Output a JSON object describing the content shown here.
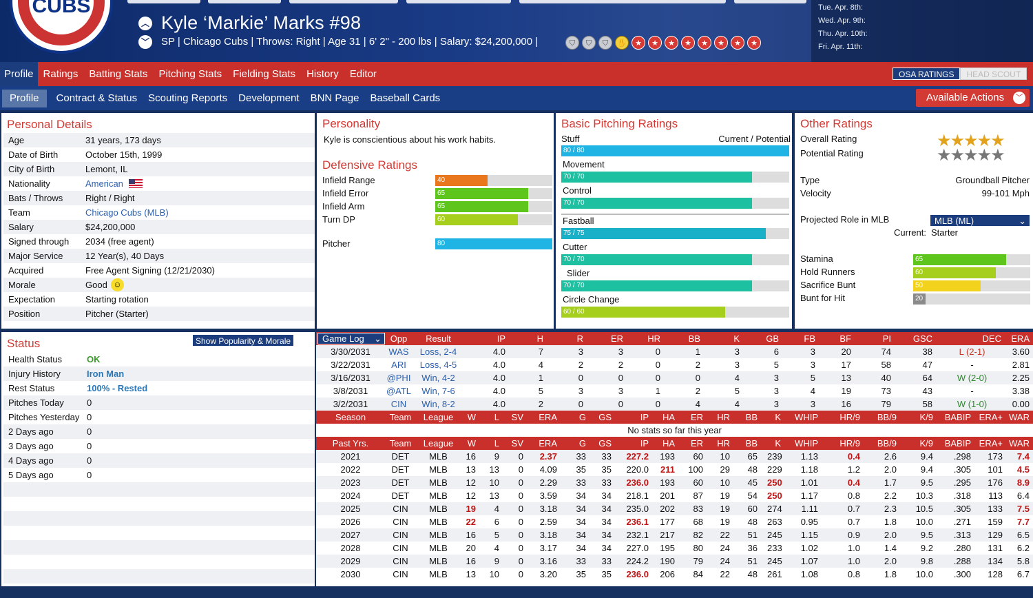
{
  "header": {
    "logo_text": "CUBS",
    "player_name": "Kyle ‘Markie’ Marks  #98",
    "player_info": "SP | Chicago Cubs  |  Throws: Right  |  Age 31  |  6' 2\" - 200 lbs  |  Salary: $24,200,000  |",
    "badges": [
      "gray",
      "gray",
      "gray",
      "gold",
      "red",
      "red",
      "red",
      "red",
      "red",
      "red",
      "red",
      "red"
    ],
    "dates": [
      "Tue. Apr. 8th:",
      "Wed. Apr. 9th:",
      "Thu. Apr. 10th:",
      "Fri. Apr. 11th:"
    ]
  },
  "nav1": {
    "tabs": [
      "Profile",
      "Ratings",
      "Batting Stats",
      "Pitching Stats",
      "Fielding Stats",
      "History",
      "Editor"
    ],
    "osa": "OSA RATINGS",
    "head_scout": "HEAD SCOUT"
  },
  "nav2": {
    "tabs": [
      "Profile",
      "Contract & Status",
      "Scouting Reports",
      "Development",
      "BNN Page",
      "Baseball Cards"
    ],
    "available_actions": "Available Actions"
  },
  "personal": {
    "title": "Personal Details",
    "rows": [
      {
        "k": "Age",
        "v": "31 years, 173 days"
      },
      {
        "k": "Date of Birth",
        "v": "October 15th, 1999"
      },
      {
        "k": "City of Birth",
        "v": "Lemont, IL"
      },
      {
        "k": "Nationality",
        "v": "American"
      },
      {
        "k": "Bats / Throws",
        "v": "Right / Right"
      },
      {
        "k": "Team",
        "v": "Chicago Cubs (MLB)"
      },
      {
        "k": "Salary",
        "v": "$24,200,000"
      },
      {
        "k": "Signed through",
        "v": "2034 (free agent)"
      },
      {
        "k": "Major Service",
        "v": "12 Year(s), 40 Days"
      },
      {
        "k": "Acquired",
        "v": "Free Agent Signing (12/21/2030)"
      },
      {
        "k": "Morale",
        "v": "Good"
      },
      {
        "k": "Expectation",
        "v": "Starting rotation"
      },
      {
        "k": "Position",
        "v": "Pitcher (Starter)"
      }
    ]
  },
  "status": {
    "title": "Status",
    "button": "Show Popularity & Morale",
    "rows": [
      {
        "k": "Health Status",
        "v": "OK"
      },
      {
        "k": "Injury History",
        "v": "Iron Man"
      },
      {
        "k": "Rest Status",
        "v": "100% - Rested"
      },
      {
        "k": "Pitches Today",
        "v": "0"
      },
      {
        "k": "Pitches Yesterday",
        "v": "0"
      },
      {
        "k": "2 Days ago",
        "v": "0"
      },
      {
        "k": "3 Days ago",
        "v": "0"
      },
      {
        "k": "4 Days ago",
        "v": "0"
      },
      {
        "k": "5 Days ago",
        "v": "0"
      }
    ]
  },
  "personality": {
    "title": "Personality",
    "text": "Kyle is conscientious about his work habits."
  },
  "defensive": {
    "title": "Defensive Ratings",
    "rows": [
      {
        "k": "Infield Range",
        "v": 40,
        "color": "#e8771d"
      },
      {
        "k": "Infield Error",
        "v": 65,
        "color": "#5dc51c"
      },
      {
        "k": "Infield Arm",
        "v": 65,
        "color": "#5dc51c"
      },
      {
        "k": "Turn DP",
        "v": 60,
        "color": "#a5cf1c"
      }
    ],
    "pitcher": {
      "k": "Pitcher",
      "v": 80,
      "color": "#1fb4e3"
    }
  },
  "basic": {
    "title": "Basic Pitching Ratings",
    "sub": "Current / Potential",
    "rows": [
      {
        "k": "Stuff",
        "cur": 80,
        "pot": 80,
        "label": "80 / 80",
        "color": "#1fb4e3"
      },
      {
        "k": "Movement",
        "cur": 70,
        "pot": 70,
        "label": "70 / 70",
        "color": "#1dc0a0"
      },
      {
        "k": "Control",
        "cur": 70,
        "pot": 70,
        "label": "70 / 70",
        "color": "#1dc0a0"
      },
      {
        "k": "Fastball",
        "cur": 75,
        "pot": 75,
        "label": "75 / 75",
        "color": "#1ab0c8"
      },
      {
        "k": "Cutter",
        "cur": 70,
        "pot": 70,
        "label": "70 / 70",
        "color": "#1dc0a0"
      },
      {
        "k": "Slider",
        "cur": 70,
        "pot": 70,
        "label": "70 / 70",
        "color": "#1dc0a0"
      },
      {
        "k": "Circle Change",
        "cur": 60,
        "pot": 60,
        "label": "60 / 60",
        "color": "#a5cf1c"
      }
    ]
  },
  "other": {
    "title": "Other Ratings",
    "overall_label": "Overall Rating",
    "overall_stars": 5,
    "potential_label": "Potential Rating",
    "potential_stars": 5,
    "type_label": "Type",
    "type_value": "Groundball Pitcher",
    "velocity_label": "Velocity",
    "velocity_value": "99-101 Mph",
    "role_label": "Projected Role in MLB",
    "role_select": "MLB (ML)",
    "current_label": "Current:",
    "current_value": "Starter",
    "bars": [
      {
        "k": "Stamina",
        "v": 65,
        "color": "#5dc51c"
      },
      {
        "k": "Hold Runners",
        "v": 60,
        "color": "#a5cf1c"
      },
      {
        "k": "Sacrifice Bunt",
        "v": 50,
        "color": "#f2d21c"
      },
      {
        "k": "Bunt for Hit",
        "v": 20,
        "color": "#c7c7c7"
      }
    ]
  },
  "gamelog": {
    "select": "Game Log",
    "headers": [
      "Opp",
      "Result",
      "IP",
      "H",
      "R",
      "ER",
      "HR",
      "BB",
      "K",
      "GB",
      "FB",
      "BF",
      "PI",
      "GSC",
      "DEC",
      "ERA"
    ],
    "rows": [
      [
        "3/30/2031",
        "WAS",
        "Loss, 2-4",
        "4.0",
        "7",
        "3",
        "3",
        "0",
        "1",
        "3",
        "6",
        "3",
        "20",
        "74",
        "38",
        "L (2-1)",
        "3.60"
      ],
      [
        "3/22/2031",
        "ARI",
        "Loss, 4-5",
        "4.0",
        "4",
        "2",
        "2",
        "0",
        "2",
        "3",
        "5",
        "3",
        "17",
        "58",
        "47",
        "-",
        "2.81"
      ],
      [
        "3/16/2031",
        "@PHI",
        "Win, 4-2",
        "4.0",
        "1",
        "0",
        "0",
        "0",
        "0",
        "4",
        "3",
        "5",
        "13",
        "40",
        "64",
        "W (2-0)",
        "2.25"
      ],
      [
        "3/8/2031",
        "@ATL",
        "Win, 7-6",
        "4.0",
        "5",
        "3",
        "3",
        "1",
        "2",
        "5",
        "3",
        "4",
        "19",
        "73",
        "43",
        "-",
        "3.38"
      ],
      [
        "3/2/2031",
        "CIN",
        "Win, 8-2",
        "4.0",
        "2",
        "0",
        "0",
        "0",
        "4",
        "4",
        "3",
        "3",
        "16",
        "79",
        "58",
        "W (1-0)",
        "0.00"
      ]
    ]
  },
  "season": {
    "headers": [
      "Season",
      "Team",
      "League",
      "W",
      "L",
      "SV",
      "ERA",
      "G",
      "GS",
      "IP",
      "HA",
      "ER",
      "HR",
      "BB",
      "K",
      "WHIP",
      "HR/9",
      "BB/9",
      "K/9",
      "BABIP",
      "ERA+",
      "WAR"
    ],
    "empty": "No stats so far this year"
  },
  "past": {
    "headers": [
      "Past Yrs.",
      "Team",
      "League",
      "W",
      "L",
      "SV",
      "ERA",
      "G",
      "GS",
      "IP",
      "HA",
      "ER",
      "HR",
      "BB",
      "K",
      "WHIP",
      "HR/9",
      "BB/9",
      "K/9",
      "BABIP",
      "ERA+",
      "WAR"
    ],
    "rows": [
      [
        "2021",
        "DET",
        "MLB",
        "16",
        "9",
        "0",
        "2.37",
        "33",
        "33",
        "227.2",
        "193",
        "60",
        "10",
        "65",
        "239",
        "1.13",
        "0.4",
        "2.6",
        "9.4",
        ".298",
        "173",
        "7.4"
      ],
      [
        "2022",
        "DET",
        "MLB",
        "13",
        "13",
        "0",
        "4.09",
        "35",
        "35",
        "220.0",
        "211",
        "100",
        "29",
        "48",
        "229",
        "1.18",
        "1.2",
        "2.0",
        "9.4",
        ".305",
        "101",
        "4.5"
      ],
      [
        "2023",
        "DET",
        "MLB",
        "12",
        "10",
        "0",
        "2.29",
        "33",
        "33",
        "236.0",
        "193",
        "60",
        "10",
        "45",
        "250",
        "1.01",
        "0.4",
        "1.7",
        "9.5",
        ".295",
        "176",
        "8.9"
      ],
      [
        "2024",
        "DET",
        "MLB",
        "12",
        "13",
        "0",
        "3.59",
        "34",
        "34",
        "218.1",
        "201",
        "87",
        "19",
        "54",
        "250",
        "1.17",
        "0.8",
        "2.2",
        "10.3",
        ".318",
        "113",
        "6.4"
      ],
      [
        "2025",
        "CIN",
        "MLB",
        "19",
        "4",
        "0",
        "3.18",
        "34",
        "34",
        "235.0",
        "202",
        "83",
        "19",
        "60",
        "274",
        "1.11",
        "0.7",
        "2.3",
        "10.5",
        ".305",
        "133",
        "7.5"
      ],
      [
        "2026",
        "CIN",
        "MLB",
        "22",
        "6",
        "0",
        "2.59",
        "34",
        "34",
        "236.1",
        "177",
        "68",
        "19",
        "48",
        "263",
        "0.95",
        "0.7",
        "1.8",
        "10.0",
        ".271",
        "159",
        "7.7"
      ],
      [
        "2027",
        "CIN",
        "MLB",
        "16",
        "5",
        "0",
        "3.18",
        "34",
        "34",
        "232.1",
        "217",
        "82",
        "22",
        "51",
        "245",
        "1.15",
        "0.9",
        "2.0",
        "9.5",
        ".313",
        "129",
        "6.5"
      ],
      [
        "2028",
        "CIN",
        "MLB",
        "20",
        "4",
        "0",
        "3.17",
        "34",
        "34",
        "227.0",
        "195",
        "80",
        "24",
        "36",
        "233",
        "1.02",
        "1.0",
        "1.4",
        "9.2",
        ".280",
        "131",
        "6.2"
      ],
      [
        "2029",
        "CIN",
        "MLB",
        "16",
        "9",
        "0",
        "3.16",
        "33",
        "33",
        "224.2",
        "190",
        "79",
        "24",
        "51",
        "245",
        "1.07",
        "1.0",
        "2.0",
        "9.8",
        ".288",
        "134",
        "5.8"
      ],
      [
        "2030",
        "CIN",
        "MLB",
        "13",
        "10",
        "0",
        "3.20",
        "35",
        "35",
        "236.0",
        "206",
        "84",
        "22",
        "48",
        "261",
        "1.08",
        "0.8",
        "1.8",
        "10.0",
        ".300",
        "128",
        "6.7"
      ]
    ],
    "highlights": [
      [
        6,
        9,
        16,
        21
      ],
      [
        10,
        21
      ],
      [
        9,
        14,
        16,
        21
      ],
      [
        14
      ],
      [
        3,
        21
      ],
      [
        3,
        9,
        21
      ],
      [],
      [],
      [],
      [
        9
      ]
    ]
  }
}
